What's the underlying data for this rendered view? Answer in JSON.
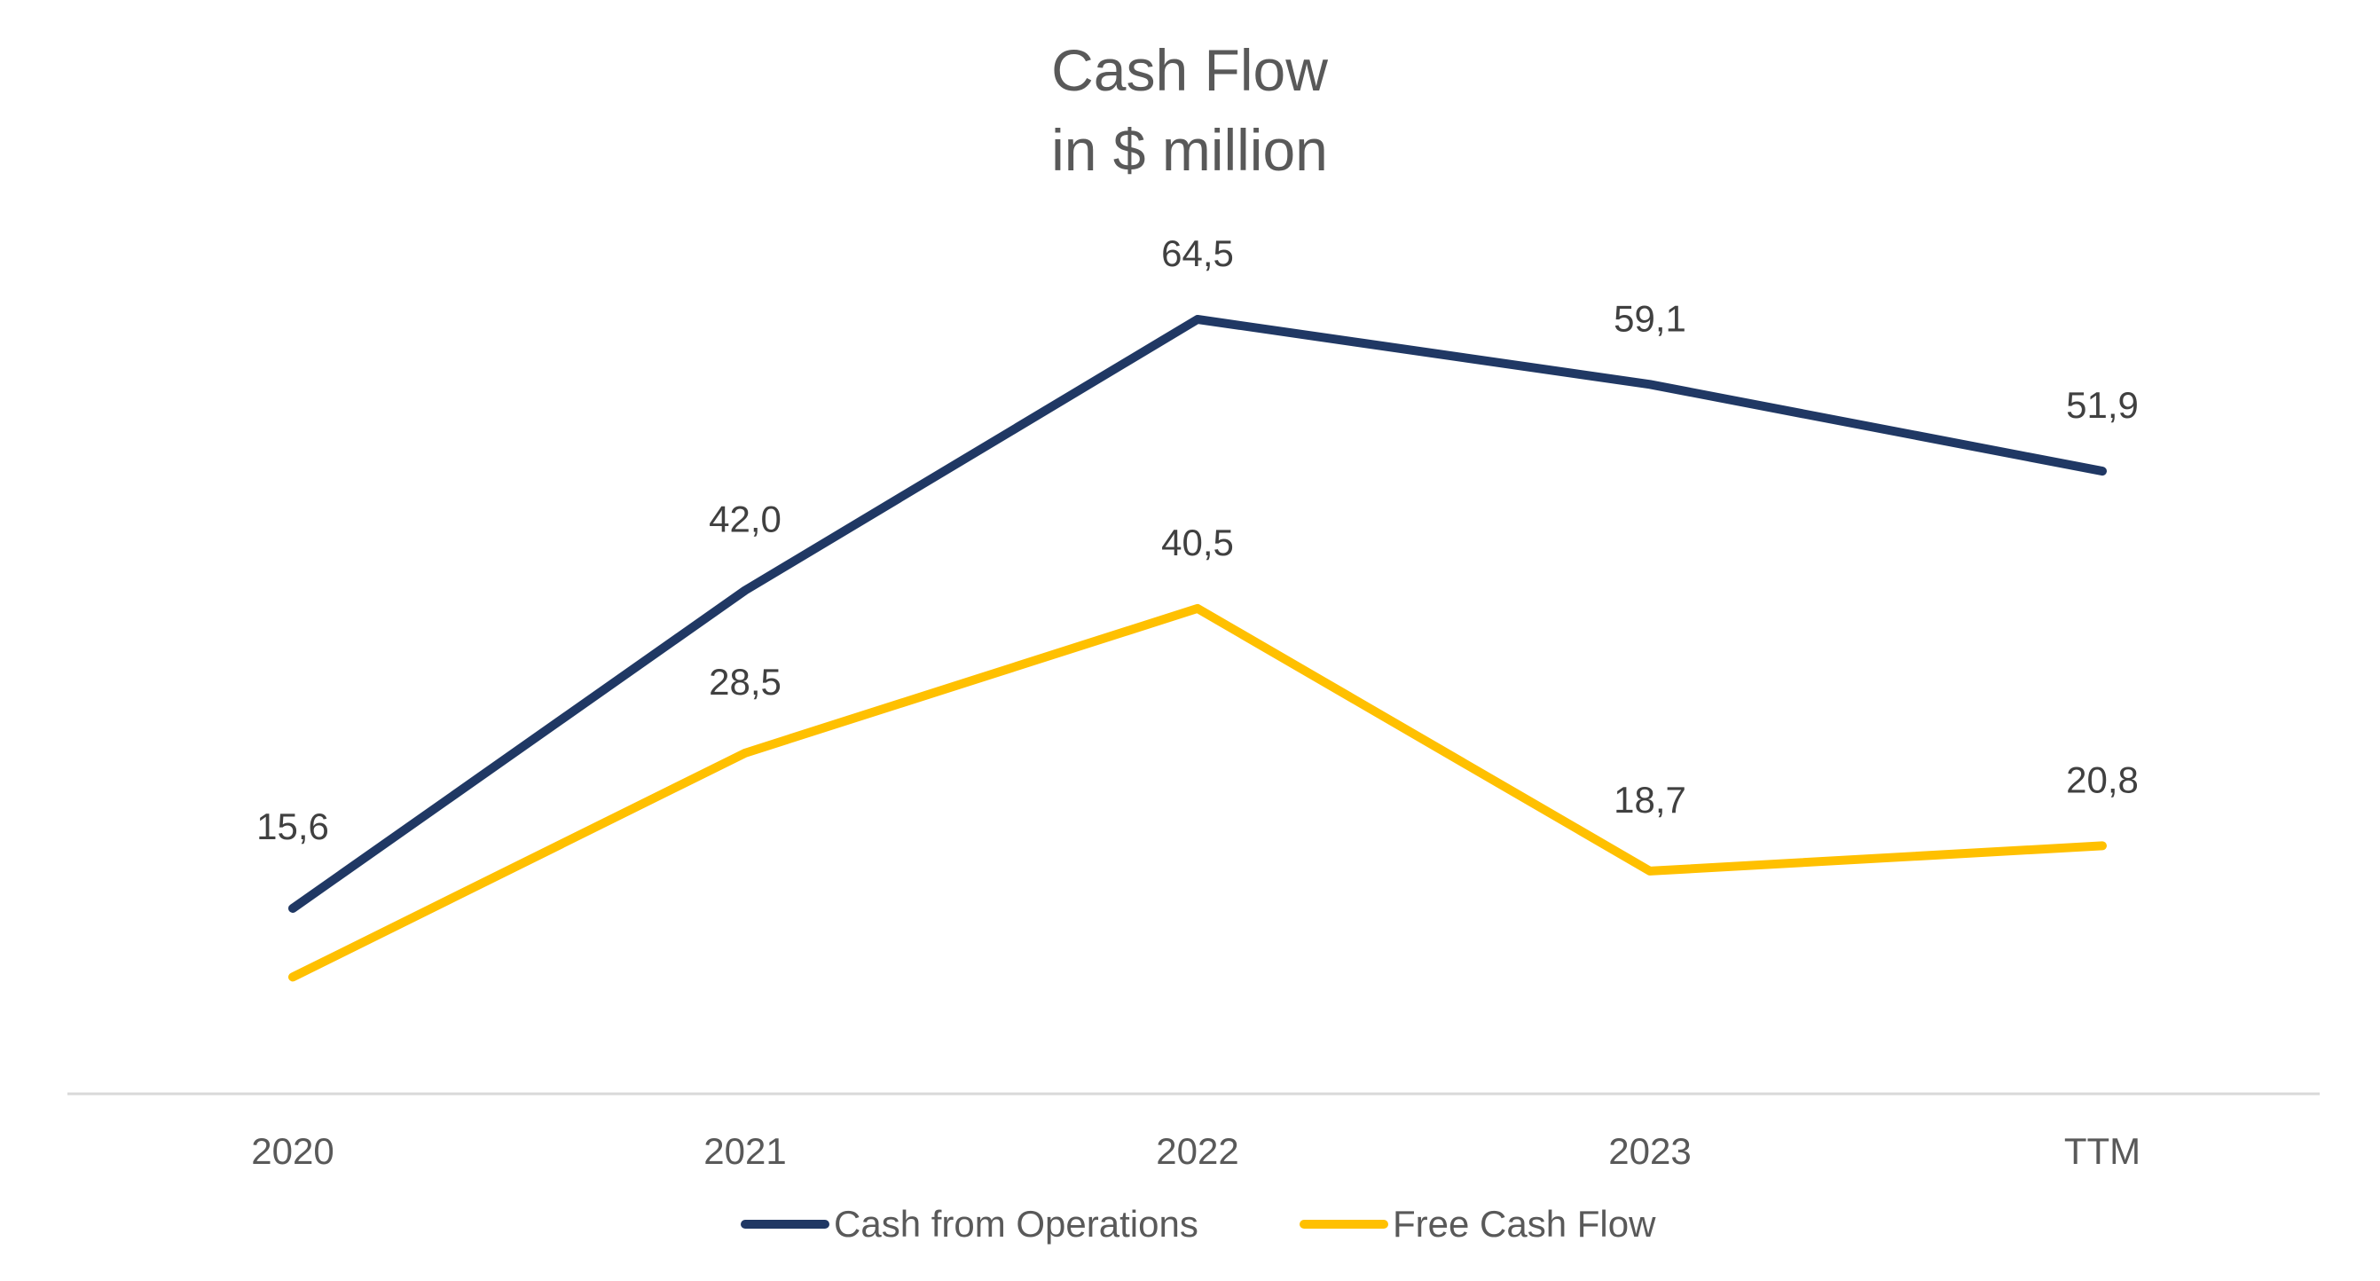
{
  "chart_data": {
    "type": "line",
    "title": "Cash Flow",
    "subtitle": "in $ million",
    "categories": [
      "2020",
      "2021",
      "2022",
      "2023",
      "TTM"
    ],
    "series": [
      {
        "name": "Cash from Operations",
        "color": "#203864",
        "values": [
          15.6,
          42.0,
          64.5,
          59.1,
          51.9
        ],
        "labels": [
          "15,6",
          "42,0",
          "64,5",
          "59,1",
          "51,9"
        ]
      },
      {
        "name": "Free Cash Flow",
        "color": "#FFC000",
        "values": [
          9.9,
          28.5,
          40.5,
          18.7,
          20.8
        ],
        "labels": [
          "",
          "28,5",
          "40,5",
          "18,7",
          "20,8"
        ]
      }
    ],
    "ylim": [
      -6,
      70
    ],
    "grid": false,
    "legend_position": "bottom",
    "xlabel": "",
    "ylabel": ""
  }
}
